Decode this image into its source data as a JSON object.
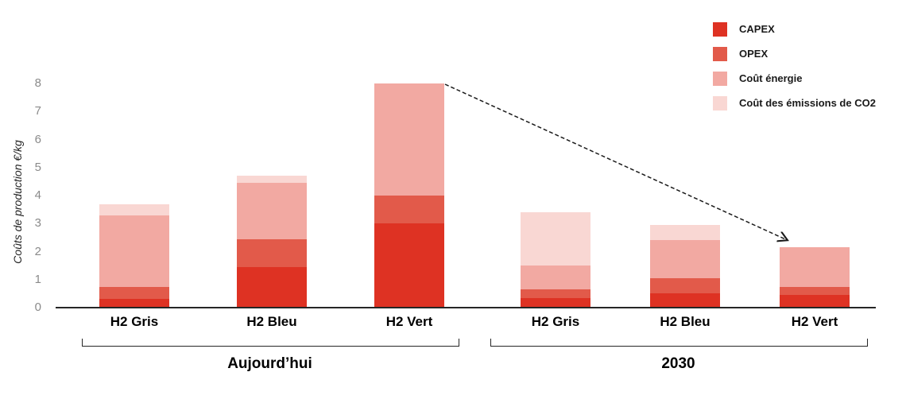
{
  "chart_data": {
    "type": "bar",
    "stacked": true,
    "title": "",
    "xlabel": "",
    "ylabel": "Coûts de production €/kg",
    "ylim": [
      0,
      8
    ],
    "yticks": [
      0,
      1,
      2,
      3,
      4,
      5,
      6,
      7,
      8
    ],
    "grid": false,
    "legend_position": "top-right",
    "categories": [
      "H2 Gris",
      "H2 Bleu",
      "H2 Vert",
      "H2 Gris",
      "H2 Bleu",
      "H2 Vert"
    ],
    "groups": [
      {
        "label": "Aujourd’hui",
        "category_indexes": [
          0,
          1,
          2
        ]
      },
      {
        "label": "2030",
        "category_indexes": [
          3,
          4,
          5
        ]
      }
    ],
    "series": [
      {
        "name": "CAPEX",
        "color": "#DE3223",
        "values": [
          0.3,
          1.45,
          3.0,
          0.35,
          0.5,
          0.45
        ]
      },
      {
        "name": "OPEX",
        "color": "#E25A4A",
        "values": [
          0.45,
          1.0,
          1.0,
          0.3,
          0.55,
          0.3
        ]
      },
      {
        "name": "Coût énergie",
        "color": "#F2A9A2",
        "values": [
          2.55,
          2.0,
          4.0,
          0.85,
          1.35,
          1.4
        ]
      },
      {
        "name": "Coût des émissions de CO2",
        "color": "#F9D7D3",
        "values": [
          0.4,
          0.25,
          0,
          1.9,
          0.55,
          0
        ]
      }
    ],
    "totals": [
      3.7,
      4.7,
      8.0,
      3.4,
      2.95,
      2.15
    ],
    "annotation": {
      "type": "arrow",
      "style": "dashed",
      "from_category_index": 2,
      "to_category_index": 5
    }
  }
}
